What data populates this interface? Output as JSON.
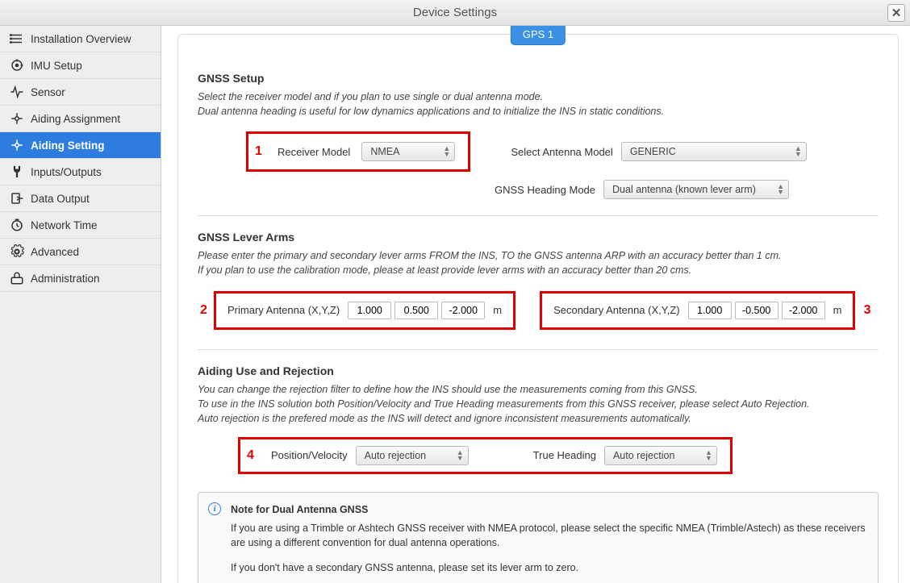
{
  "window": {
    "title": "Device Settings",
    "close_glyph": "✕"
  },
  "sidebar": {
    "items": [
      {
        "label": "Installation Overview",
        "icon": "list"
      },
      {
        "label": "IMU Setup",
        "icon": "imu"
      },
      {
        "label": "Sensor",
        "icon": "sensor"
      },
      {
        "label": "Aiding Assignment",
        "icon": "assign"
      },
      {
        "label": "Aiding Setting",
        "icon": "setting",
        "active": true
      },
      {
        "label": "Inputs/Outputs",
        "icon": "plug"
      },
      {
        "label": "Data Output",
        "icon": "output"
      },
      {
        "label": "Network Time",
        "icon": "clock"
      },
      {
        "label": "Advanced",
        "icon": "gear"
      },
      {
        "label": "Administration",
        "icon": "admin"
      }
    ]
  },
  "tab": {
    "label": "GPS 1"
  },
  "colors": {
    "accent": "#2d7de0",
    "highlight": "#e00000",
    "tab_bg": "#3b91e6"
  },
  "gnss_setup": {
    "title": "GNSS Setup",
    "desc1": "Select the receiver model and if you plan to use single or dual antenna mode.",
    "desc2": "Dual antenna heading is useful for low dynamics applications and to initialize the INS in static conditions.",
    "receiver_label": "Receiver Model",
    "receiver_value": "NMEA",
    "antenna_label": "Select Antenna Model",
    "antenna_value": "GENERIC",
    "heading_label": "GNSS Heading Mode",
    "heading_value": "Dual antenna (known lever arm)",
    "marker": "1"
  },
  "lever_arms": {
    "title": "GNSS Lever Arms",
    "desc1": "Please enter the primary and secondary lever arms FROM the INS, TO the GNSS antenna ARP with an accuracy better than 1 cm.",
    "desc2": "If you plan to use the calibration mode, please at least provide lever arms with an accuracy better than 20 cms.",
    "primary_label": "Primary Antenna (X,Y,Z)",
    "primary": {
      "x": "1.000",
      "y": "0.500",
      "z": "-2.000"
    },
    "secondary_label": "Secondary Antenna (X,Y,Z)",
    "secondary": {
      "x": "1.000",
      "y": "-0.500",
      "z": "-2.000"
    },
    "unit": "m",
    "marker_left": "2",
    "marker_right": "3"
  },
  "aiding": {
    "title": "Aiding Use and Rejection",
    "desc1": "You can change the rejection filter to define how the INS should use the measurements coming from this GNSS.",
    "desc2": "To use in the INS solution both Position/Velocity and True Heading measurements from this GNSS receiver, please select Auto Rejection.",
    "desc3": "Auto rejection is the prefered mode as the INS will detect and ignore inconsistent measurements automatically.",
    "posvel_label": "Position/Velocity",
    "posvel_value": "Auto rejection",
    "heading_label": "True Heading",
    "heading_value": "Auto rejection",
    "marker": "4"
  },
  "note": {
    "title": "Note for Dual Antenna GNSS",
    "p1": "If you are using a Trimble or Ashtech GNSS receiver with NMEA protocol, please select the specific NMEA (Trimble/Astech) as these receivers are using a different convention for dual antenna operations.",
    "p2": "If you don't have a secondary GNSS antenna, please set its lever arm to zero."
  }
}
